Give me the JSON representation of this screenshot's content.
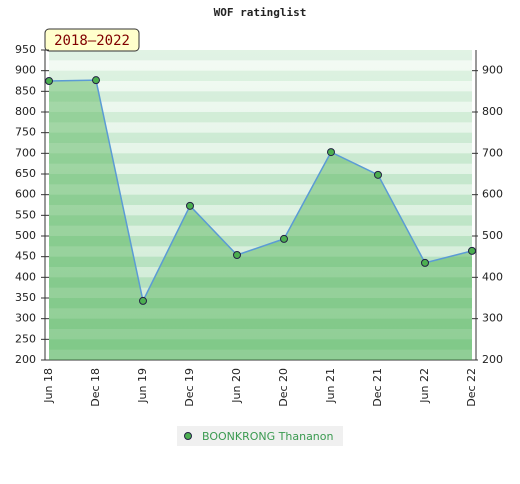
{
  "chart_data": {
    "type": "line",
    "title": "WOF ratinglist",
    "annotation": "2018–2022",
    "categories": [
      "Jun 18",
      "Dec 18",
      "Jun 19",
      "Dec 19",
      "Jun 20",
      "Dec 20",
      "Jun 21",
      "Dec 21",
      "Jun 22",
      "Dec 22"
    ],
    "series": [
      {
        "name": "BOONKRONG Thananon",
        "color": "#5b9bd5",
        "marker_color": "#4caf50",
        "fill_color": "#4caf50",
        "values": [
          875,
          877,
          343,
          573,
          454,
          493,
          703,
          648,
          435,
          464
        ]
      }
    ],
    "ylim": [
      200,
      950
    ],
    "yticks": [
      200,
      250,
      300,
      350,
      400,
      450,
      500,
      550,
      600,
      650,
      700,
      750,
      800,
      850,
      900,
      950
    ],
    "y2lim": [
      200,
      950
    ],
    "y2ticks": [
      200,
      300,
      400,
      500,
      600,
      700,
      800,
      900
    ],
    "grid": true
  }
}
